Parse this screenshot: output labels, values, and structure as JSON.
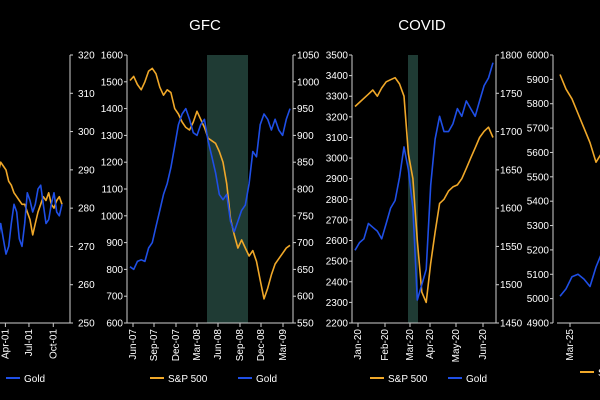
{
  "colors": {
    "background": "#000000",
    "sp500": "#f0a829",
    "gold": "#1f4fe6",
    "shade": "#1f3b34",
    "axis": "#cfcfcf",
    "text": "#ffffff"
  },
  "chart_data": [
    {
      "type": "line",
      "title": "",
      "partial": true,
      "x_ticks": [
        "Apr-01",
        "Jul-01",
        "Oct-01"
      ],
      "y_right": {
        "ticks": [
          "250",
          "260",
          "270",
          "280",
          "290",
          "300",
          "310",
          "320"
        ],
        "range": [
          250,
          320
        ]
      },
      "legend": [
        {
          "name": "Gold",
          "color": "#1f4fe6"
        }
      ],
      "series": [
        {
          "name": "S&P 500",
          "color": "#f0a829",
          "values": [
            274,
            280,
            284,
            289,
            292,
            291,
            290,
            287,
            286,
            284,
            283,
            282,
            281,
            281,
            279,
            277,
            273,
            276,
            279,
            281,
            283,
            282,
            284,
            281,
            280,
            282,
            283,
            281
          ]
        },
        {
          "name": "Gold",
          "color": "#1f4fe6",
          "values": [
            259,
            263,
            268,
            271,
            276,
            272,
            268,
            270,
            276,
            281,
            279,
            272,
            270,
            276,
            284,
            282,
            279,
            281,
            285,
            286,
            281,
            276,
            277,
            281,
            284,
            279,
            278,
            281
          ]
        }
      ]
    },
    {
      "type": "line",
      "title": "GFC",
      "x_ticks": [
        "Jun-07",
        "Sep-07",
        "Dec-07",
        "Mar-08",
        "Jun-08",
        "Sep-08",
        "Dec-08",
        "Mar-09"
      ],
      "y_left": {
        "ticks": [
          "600",
          "700",
          "800",
          "900",
          "1000",
          "1100",
          "1200",
          "1300",
          "1400",
          "1500",
          "1600"
        ],
        "range": [
          600,
          1600
        ]
      },
      "y_right": {
        "ticks": [
          "550",
          "600",
          "650",
          "700",
          "750",
          "800",
          "850",
          "900",
          "950",
          "1000",
          "1050"
        ],
        "range": [
          550,
          1050
        ]
      },
      "shaded_period": [
        "Aug-08",
        "Oct-08"
      ],
      "legend": [
        {
          "name": "S&P 500",
          "color": "#f0a829"
        },
        {
          "name": "Gold",
          "color": "#1f4fe6"
        }
      ],
      "series": [
        {
          "name": "S&P 500",
          "axis": "left",
          "color": "#f0a829",
          "values": [
            1505,
            1520,
            1490,
            1470,
            1500,
            1540,
            1550,
            1530,
            1480,
            1450,
            1470,
            1460,
            1400,
            1380,
            1350,
            1330,
            1320,
            1350,
            1390,
            1360,
            1330,
            1290,
            1280,
            1270,
            1240,
            1200,
            1120,
            990,
            930,
            880,
            910,
            880,
            850,
            870,
            830,
            760,
            690,
            730,
            780,
            820,
            840,
            860,
            880,
            890
          ]
        },
        {
          "name": "Gold",
          "axis": "right",
          "color": "#1f4fe6",
          "values": [
            655,
            650,
            665,
            668,
            665,
            690,
            700,
            730,
            760,
            790,
            810,
            840,
            880,
            920,
            940,
            950,
            930,
            905,
            900,
            920,
            930,
            890,
            860,
            830,
            790,
            780,
            790,
            740,
            720,
            740,
            760,
            770,
            810,
            870,
            860,
            920,
            940,
            930,
            910,
            930,
            910,
            900,
            930,
            950
          ]
        }
      ]
    },
    {
      "type": "line",
      "title": "COVID",
      "x_ticks": [
        "Jan-20",
        "Feb-20",
        "Mar-20",
        "Apr-20",
        "May-20",
        "Jun-20"
      ],
      "y_left": {
        "ticks": [
          "2200",
          "2300",
          "2400",
          "2500",
          "2600",
          "2700",
          "2800",
          "2900",
          "3000",
          "3100",
          "3200",
          "3300",
          "3400",
          "3500"
        ],
        "range": [
          2200,
          3500
        ]
      },
      "y_right": {
        "ticks": [
          "1450",
          "1500",
          "1550",
          "1600",
          "1650",
          "1700",
          "1750",
          "1800"
        ],
        "range": [
          1450,
          1800
        ]
      },
      "shaded_period": [
        "Mar-20",
        "Apr-20"
      ],
      "legend": [
        {
          "name": "S&P 500",
          "color": "#f0a829"
        },
        {
          "name": "Gold",
          "color": "#1f4fe6"
        }
      ],
      "series": [
        {
          "name": "S&P 500",
          "axis": "left",
          "color": "#f0a829",
          "values": [
            3250,
            3270,
            3290,
            3310,
            3330,
            3300,
            3340,
            3370,
            3380,
            3390,
            3360,
            3300,
            3020,
            2900,
            2600,
            2350,
            2300,
            2490,
            2640,
            2780,
            2800,
            2840,
            2860,
            2870,
            2900,
            2950,
            3000,
            3050,
            3100,
            3130,
            3150,
            3100
          ]
        },
        {
          "name": "Gold",
          "axis": "right",
          "color": "#1f4fe6",
          "values": [
            1545,
            1555,
            1560,
            1580,
            1575,
            1570,
            1560,
            1580,
            1600,
            1610,
            1640,
            1680,
            1650,
            1600,
            1480,
            1500,
            1520,
            1630,
            1690,
            1720,
            1700,
            1700,
            1710,
            1730,
            1720,
            1740,
            1730,
            1720,
            1740,
            1760,
            1770,
            1790
          ]
        }
      ]
    },
    {
      "type": "line",
      "title": "",
      "partial": true,
      "x_ticks": [
        "Mar-25"
      ],
      "y_left": {
        "ticks": [
          "4900",
          "5000",
          "5100",
          "5200",
          "5300",
          "5400",
          "5500",
          "5600",
          "5700",
          "5800",
          "5900",
          "6000"
        ],
        "range": [
          4900,
          6000
        ]
      },
      "legend": [
        {
          "name": "S&P 500",
          "color": "#f0a829"
        }
      ],
      "series": [
        {
          "name": "S&P 500",
          "axis": "left",
          "color": "#f0a829",
          "values": [
            5920,
            5860,
            5820,
            5760,
            5700,
            5640,
            5560,
            5600,
            5660,
            5680,
            5700
          ]
        },
        {
          "name": "Gold",
          "axis": "left",
          "color": "#1f4fe6",
          "values": [
            5010,
            5040,
            5090,
            5100,
            5080,
            5050,
            5130,
            5190,
            5210,
            5230,
            5240
          ]
        }
      ]
    }
  ]
}
